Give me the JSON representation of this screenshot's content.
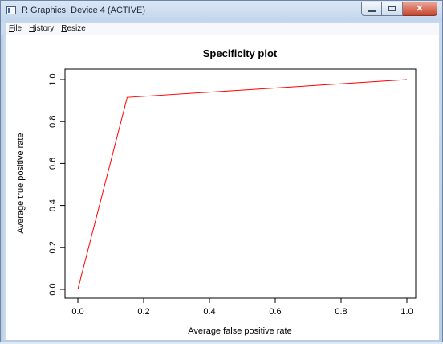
{
  "window": {
    "title": "R Graphics: Device 4 (ACTIVE)",
    "controls": {
      "minimize": "minimize",
      "maximize": "maximize",
      "close": "✕"
    }
  },
  "menu": [
    {
      "accel": "F",
      "rest": "ile"
    },
    {
      "accel": "H",
      "rest": "istory"
    },
    {
      "accel": "R",
      "rest": "esize"
    }
  ],
  "chart_data": {
    "type": "line",
    "title": "Specificity plot",
    "xlabel": "Average false positive rate",
    "ylabel": "Average true positive rate",
    "xlim": [
      0.0,
      1.0
    ],
    "ylim": [
      0.0,
      1.0
    ],
    "x_ticks": [
      "0.0",
      "0.2",
      "0.4",
      "0.6",
      "0.8",
      "1.0"
    ],
    "y_ticks": [
      "0.0",
      "0.2",
      "0.4",
      "0.6",
      "0.8",
      "1.0"
    ],
    "grid": false,
    "legend": "none",
    "series": [
      {
        "color": "#ff0000",
        "x": [
          0.0,
          0.15,
          1.0
        ],
        "y": [
          0.0,
          0.915,
          1.0
        ]
      }
    ]
  }
}
